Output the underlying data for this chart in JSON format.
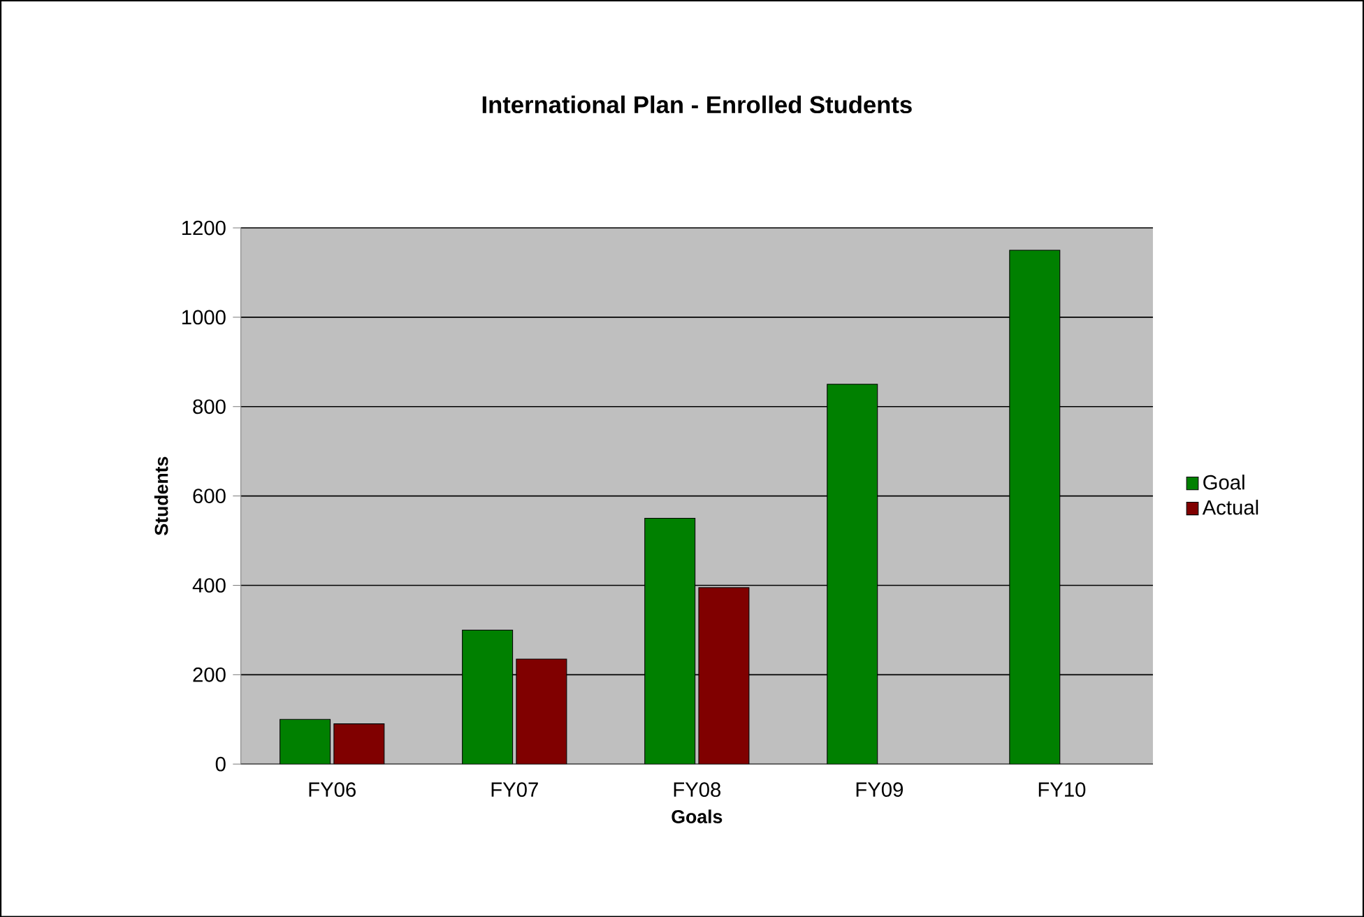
{
  "chart_data": {
    "type": "bar",
    "title": "International Plan - Enrolled Students",
    "xlabel": "Goals",
    "ylabel": "Students",
    "categories": [
      "FY06",
      "FY07",
      "FY08",
      "FY09",
      "FY10"
    ],
    "series": [
      {
        "name": "Goal",
        "color": "#008000",
        "values": [
          100,
          300,
          550,
          850,
          1150
        ]
      },
      {
        "name": "Actual",
        "color": "#800000",
        "values": [
          90,
          235,
          395,
          null,
          null
        ]
      }
    ],
    "ylim": [
      0,
      1200
    ],
    "yticks": [
      0,
      200,
      400,
      600,
      800,
      1000,
      1200
    ],
    "grid": "y",
    "legend": "right"
  }
}
